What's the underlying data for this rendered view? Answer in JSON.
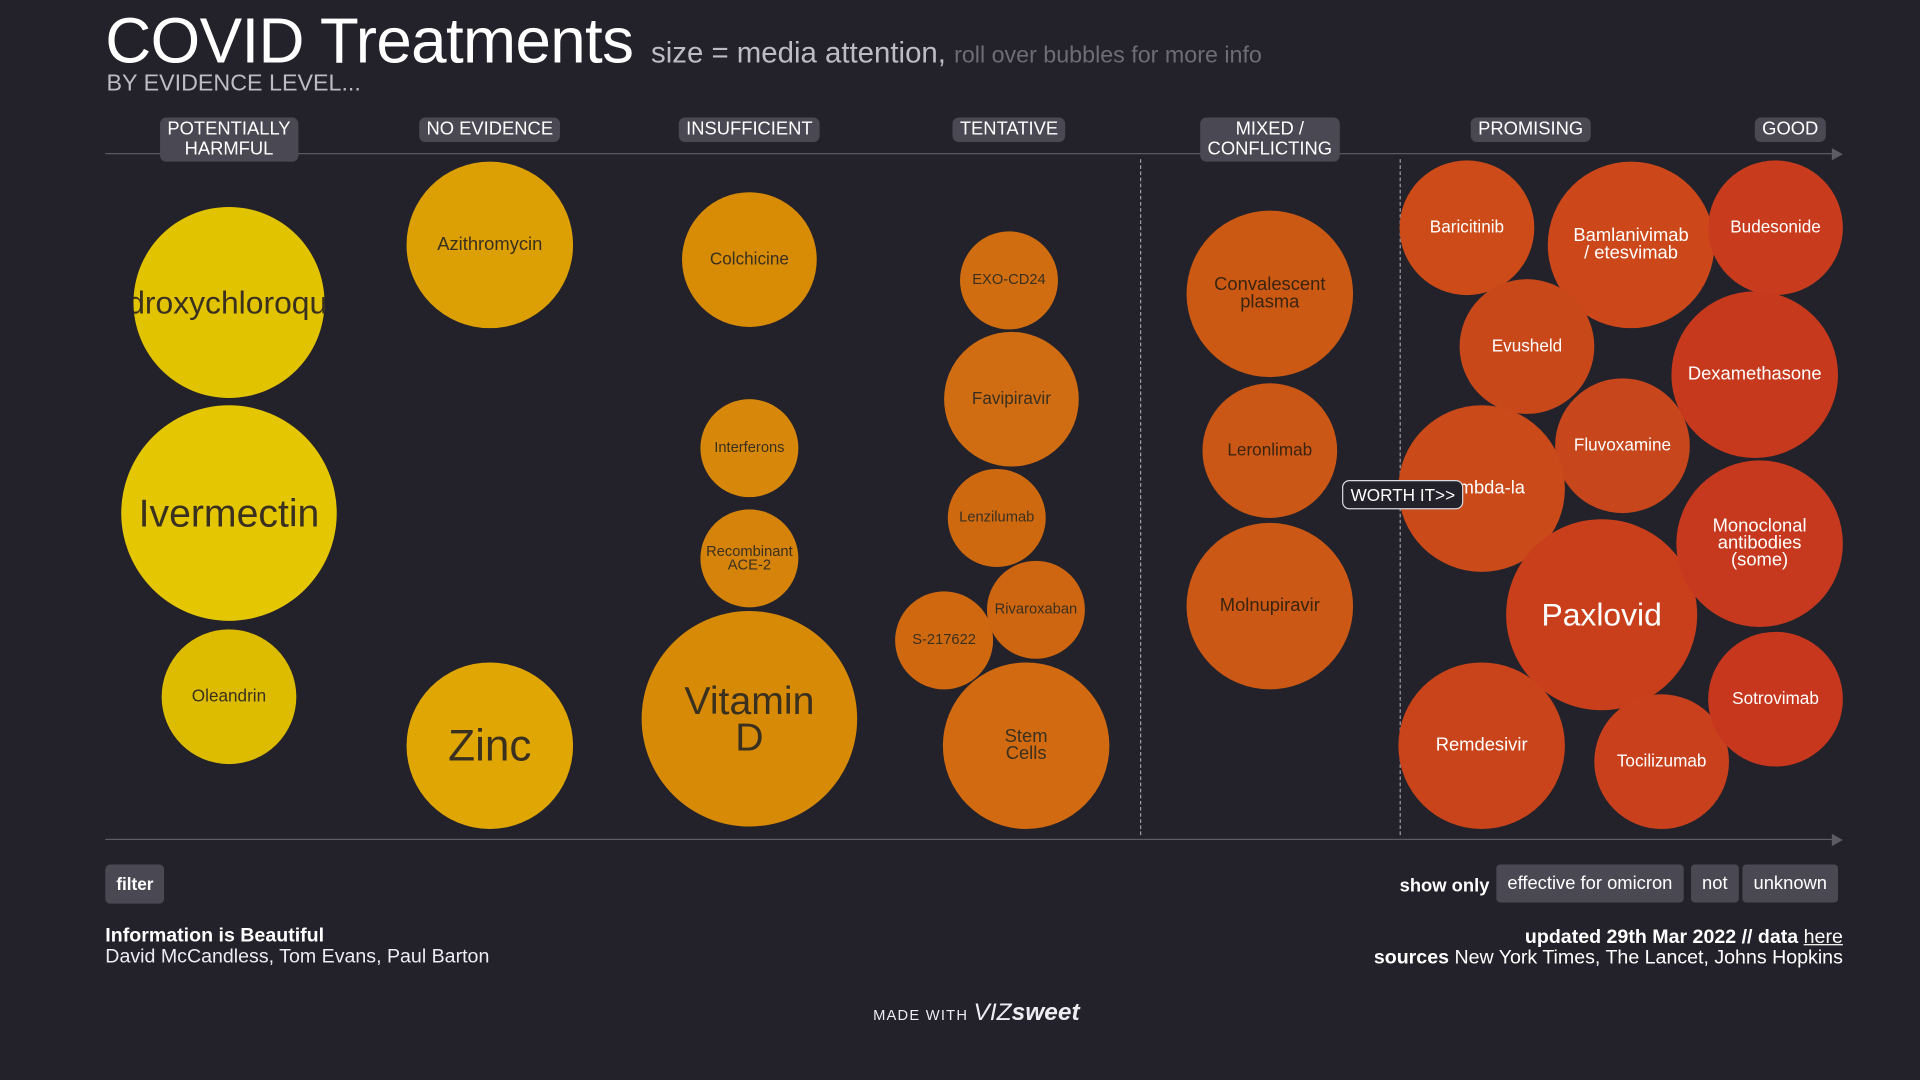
{
  "header": {
    "title": "COVID Treatments",
    "subtitle": "size = media attention,",
    "hint": "roll over bubbles for more info",
    "by_evidence": "BY EVIDENCE LEVEL..."
  },
  "chart_data": {
    "type": "bubble",
    "size_encodes": "media attention",
    "categories": [
      "POTENTIALLY\nHARMFUL",
      "NO EVIDENCE",
      "INSUFFICIENT",
      "TENTATIVE",
      "MIXED /\nCONFLICTING",
      "PROMISING",
      "GOOD"
    ],
    "annotation": "WORTH IT>>",
    "items": [
      {
        "label": "Hydroxychloroquine",
        "category": 0,
        "size": 78,
        "color": "#e2c300"
      },
      {
        "label": "Ivermectin",
        "category": 0,
        "size": 88,
        "color": "#e4c702"
      },
      {
        "label": "Oleandrin",
        "category": 0,
        "size": 55,
        "color": "#ddbc00"
      },
      {
        "label": "Azithromycin",
        "category": 1,
        "size": 68,
        "color": "#dc9f04"
      },
      {
        "label": "Zinc",
        "category": 1,
        "size": 68,
        "color": "#e0a704"
      },
      {
        "label": "Colchicine",
        "category": 2,
        "size": 55,
        "color": "#d88b05"
      },
      {
        "label": "Interferons",
        "category": 2,
        "size": 40,
        "color": "#d7880a"
      },
      {
        "label": "Recombinant\nACE-2",
        "category": 2,
        "size": 40,
        "color": "#d5830b"
      },
      {
        "label": "Vitamin\nD",
        "category": 2,
        "size": 88,
        "color": "#d78a06"
      },
      {
        "label": "EXO-CD24",
        "category": 3,
        "size": 40,
        "color": "#d06d10"
      },
      {
        "label": "Favipiravir",
        "category": 3,
        "size": 55,
        "color": "#d06c12"
      },
      {
        "label": "Lenzilumab",
        "category": 3,
        "size": 40,
        "color": "#cf6910"
      },
      {
        "label": "S-217622",
        "category": 3,
        "size": 40,
        "color": "#cf680f"
      },
      {
        "label": "Rivaroxaban",
        "category": 3,
        "size": 40,
        "color": "#cd6511"
      },
      {
        "label": "Stem\nCells",
        "category": 3,
        "size": 68,
        "color": "#d16a10"
      },
      {
        "label": "Convalescent\nplasma",
        "category": 4,
        "size": 68,
        "color": "#cb5914"
      },
      {
        "label": "Leronlimab",
        "category": 4,
        "size": 55,
        "color": "#ca5715"
      },
      {
        "label": "Molnupiravir",
        "category": 4,
        "size": 68,
        "color": "#cb5814"
      },
      {
        "label": "Baricitinib",
        "category": 5,
        "size": 55,
        "color": "#cc4b18"
      },
      {
        "label": "Bamlanivimab\n/ etesvimab",
        "category": 5,
        "size": 68,
        "color": "#cc4719"
      },
      {
        "label": "Evusheld",
        "category": 5,
        "size": 55,
        "color": "#c9481a"
      },
      {
        "label": "Fluvoxamine",
        "category": 5,
        "size": 55,
        "color": "#c7461b"
      },
      {
        "label": "Lambda-la",
        "category": 5,
        "size": 68,
        "color": "#ca4a19"
      },
      {
        "label": "Paxlovid",
        "category": 5,
        "size": 78,
        "color": "#c93f1b"
      },
      {
        "label": "Remdesivir",
        "category": 5,
        "size": 68,
        "color": "#c9441b"
      },
      {
        "label": "Tocilizumab",
        "category": 5,
        "size": 55,
        "color": "#c8401c"
      },
      {
        "label": "Budesonide",
        "category": 6,
        "size": 55,
        "color": "#c83c1d"
      },
      {
        "label": "Dexamethasone",
        "category": 6,
        "size": 68,
        "color": "#c7391d"
      },
      {
        "label": "Monoclonal\nantibodies\n(some)",
        "category": 6,
        "size": 68,
        "color": "#c7391e"
      },
      {
        "label": "Sotrovimab",
        "category": 6,
        "size": 55,
        "color": "#c7371e"
      }
    ]
  },
  "controls": {
    "filter_label": "filter",
    "show_only_label": "show only",
    "options": [
      "effective for omicron",
      "not",
      "unknown"
    ]
  },
  "footer": {
    "org": "Information is Beautiful",
    "names": "David McCandless, Tom Evans, Paul Barton",
    "updated": "updated 29th Mar 2022 // data",
    "data_link": "here",
    "sources_label": "sources",
    "sources": "New York Times, The Lancet, Johns Hopkins",
    "made_with": "MADE WITH",
    "brand_a": "VIZ",
    "brand_b": "sweet"
  }
}
